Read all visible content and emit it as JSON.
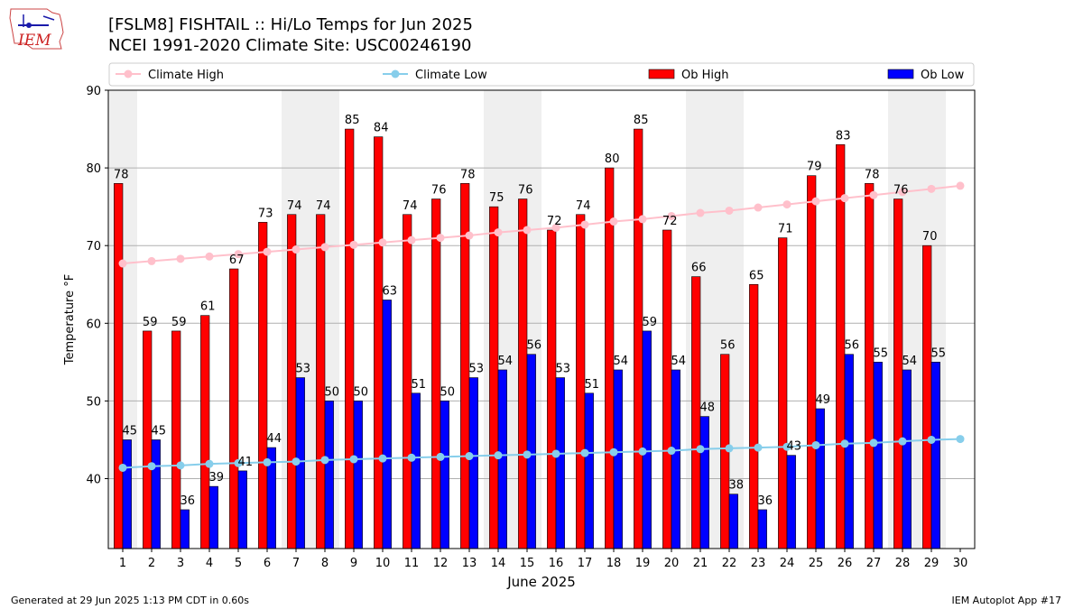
{
  "header": {
    "title_line1": "[FSLM8] FISHTAIL :: Hi/Lo Temps for Jun 2025",
    "title_line2": "NCEI 1991-2020 Climate Site: USC00246190",
    "logo_text": "IEM"
  },
  "footer": {
    "left": "Generated at 29 Jun 2025 1:13 PM CDT in 0.60s",
    "right": "IEM Autoplot App #17"
  },
  "colors": {
    "ob_high": "#ff0000",
    "ob_low": "#0000ff",
    "climate_high": "#ffc0cb",
    "climate_low": "#87ceeb",
    "weekend_shade": "#efefef",
    "grid": "#b0b0b0"
  },
  "chart_data": {
    "type": "bar",
    "xlabel": "June 2025",
    "ylabel": "Temperature °F",
    "ylim": [
      31,
      90
    ],
    "y_ticks": [
      40,
      50,
      60,
      70,
      80,
      90
    ],
    "grid": "horizontal",
    "legend_position": "top",
    "weekend_days": [
      1,
      7,
      8,
      14,
      15,
      21,
      22,
      28,
      29
    ],
    "categories": [
      1,
      2,
      3,
      4,
      5,
      6,
      7,
      8,
      9,
      10,
      11,
      12,
      13,
      14,
      15,
      16,
      17,
      18,
      19,
      20,
      21,
      22,
      23,
      24,
      25,
      26,
      27,
      28,
      29,
      30
    ],
    "series": [
      {
        "name": "Climate High",
        "kind": "line",
        "values": [
          67.7,
          68.0,
          68.3,
          68.6,
          68.9,
          69.2,
          69.5,
          69.8,
          70.1,
          70.4,
          70.7,
          71.0,
          71.3,
          71.7,
          72.0,
          72.3,
          72.7,
          73.1,
          73.4,
          73.8,
          74.2,
          74.5,
          74.9,
          75.3,
          75.7,
          76.1,
          76.5,
          76.9,
          77.3,
          77.7
        ]
      },
      {
        "name": "Climate Low",
        "kind": "line",
        "values": [
          41.4,
          41.6,
          41.7,
          41.9,
          42.0,
          42.1,
          42.2,
          42.4,
          42.5,
          42.6,
          42.7,
          42.8,
          42.9,
          43.0,
          43.1,
          43.2,
          43.3,
          43.4,
          43.5,
          43.6,
          43.8,
          43.9,
          44.0,
          44.1,
          44.3,
          44.5,
          44.6,
          44.8,
          45.0,
          45.1
        ]
      },
      {
        "name": "Ob High",
        "kind": "bar",
        "values": [
          78,
          59,
          59,
          61,
          67,
          73,
          74,
          74,
          85,
          84,
          74,
          76,
          78,
          75,
          76,
          72,
          74,
          80,
          85,
          72,
          66,
          56,
          65,
          71,
          79,
          83,
          78,
          76,
          70,
          null
        ]
      },
      {
        "name": "Ob Low",
        "kind": "bar",
        "values": [
          45,
          45,
          36,
          39,
          41,
          44,
          53,
          50,
          50,
          63,
          51,
          50,
          53,
          54,
          56,
          53,
          51,
          54,
          59,
          54,
          48,
          38,
          36,
          43,
          49,
          56,
          55,
          54,
          55,
          null
        ]
      }
    ]
  }
}
